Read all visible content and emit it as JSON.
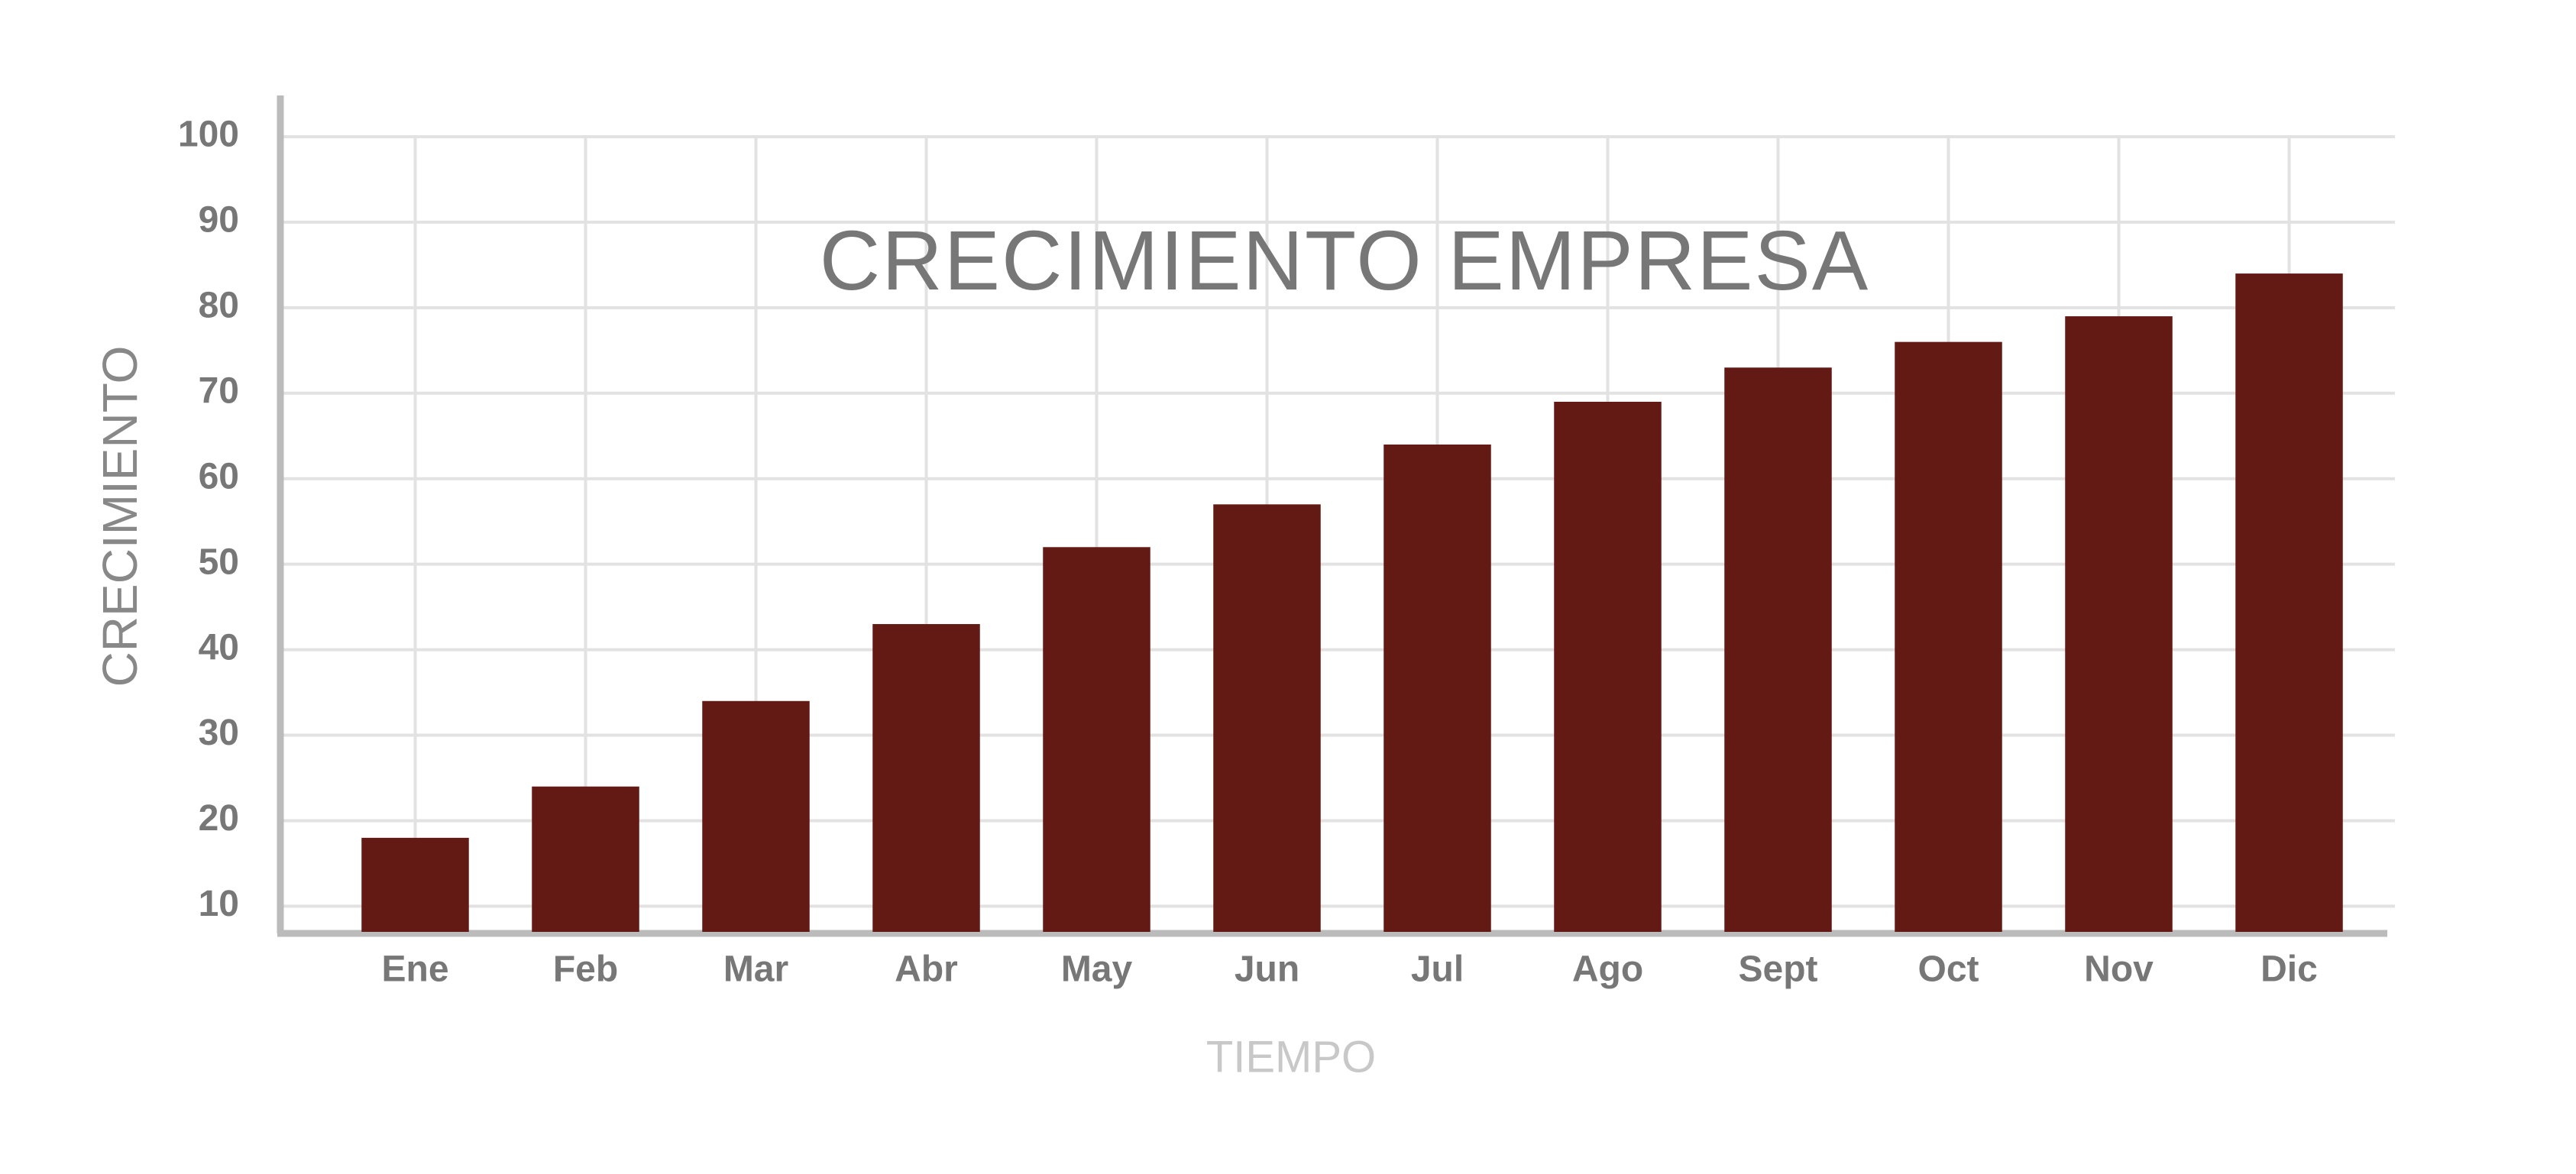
{
  "chart_data": {
    "type": "bar",
    "title": "CRECIMIENTO EMPRESA",
    "x_label": "TIEMPO",
    "y_label": "CRECIMIENTO",
    "categories": [
      "Ene",
      "Feb",
      "Mar",
      "Abr",
      "May",
      "Jun",
      "Jul",
      "Ago",
      "Sept",
      "Oct",
      "Nov",
      "Dic"
    ],
    "values": [
      18,
      24,
      34,
      43,
      52,
      57,
      64,
      69,
      73,
      76,
      79,
      84
    ],
    "color": "#631914",
    "ylim": [
      7,
      100
    ],
    "yticks": [
      10,
      20,
      30,
      40,
      50,
      60,
      70,
      80,
      90,
      100
    ],
    "grid": true
  }
}
